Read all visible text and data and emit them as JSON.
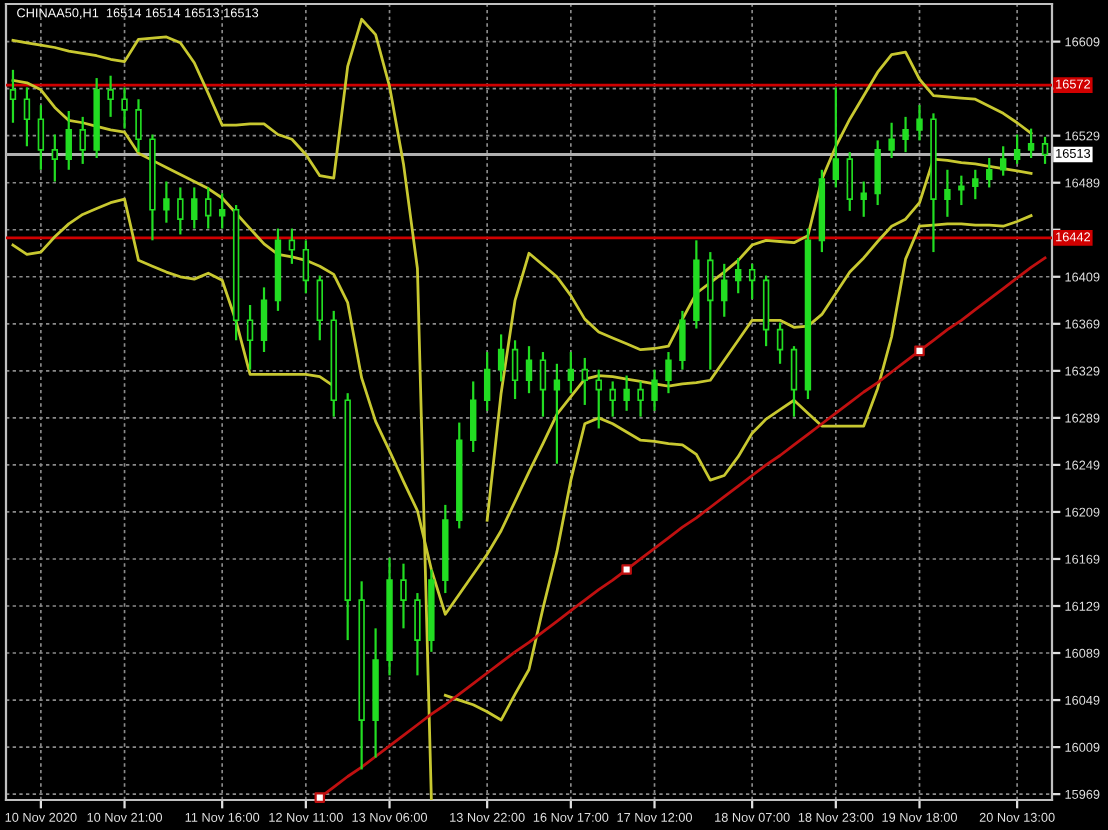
{
  "chart_data": {
    "type": "candlestick",
    "title": "CHINAA50,H1  16514 16514 16513 16513",
    "categories": [
      null,
      null,
      "10 Nov 2020",
      null,
      null,
      null,
      null,
      null,
      "10 Nov 21:00",
      null,
      null,
      null,
      null,
      null,
      null,
      "11 Nov 16:00",
      null,
      null,
      null,
      null,
      null,
      "12 Nov 11:00",
      null,
      null,
      null,
      null,
      null,
      "13 Nov 06:00",
      null,
      null,
      null,
      null,
      null,
      null,
      "13 Nov 22:00",
      null,
      null,
      null,
      null,
      null,
      "16 Nov 17:00",
      null,
      null,
      null,
      null,
      null,
      "17 Nov 12:00",
      null,
      null,
      null,
      null,
      null,
      null,
      "18 Nov 07:00",
      null,
      null,
      null,
      null,
      null,
      "18 Nov 23:00",
      null,
      null,
      null,
      null,
      null,
      "19 Nov 18:00",
      null,
      null,
      null,
      null,
      null,
      null,
      "20 Nov 13:00",
      null,
      null
    ],
    "ylim": [
      15964,
      16641
    ],
    "yticks": [
      16609,
      {
        "value": 16569,
        "label": null
      },
      16529,
      16489,
      {
        "value": 16449,
        "label": null
      },
      16409,
      16369,
      16329,
      16289,
      16249,
      16209,
      16169,
      16129,
      16089,
      16049,
      16009,
      15969
    ],
    "grid": true,
    "series": [
      {
        "color": "#22dd22",
        "ohlc": [
          [
            16568,
            16585,
            16540,
            16560
          ],
          [
            16560,
            16570,
            16520,
            16543
          ],
          [
            16543,
            16555,
            16500,
            16517
          ],
          [
            16517,
            16530,
            16490,
            16509
          ],
          [
            16509,
            16550,
            16500,
            16534
          ],
          [
            16534,
            16545,
            16505,
            16517
          ],
          [
            16517,
            16578,
            16510,
            16568
          ],
          [
            16568,
            16580,
            16545,
            16560
          ],
          [
            16560,
            16570,
            16535,
            16551
          ],
          [
            16551,
            16560,
            16515,
            16526
          ],
          [
            16526,
            16530,
            16440,
            16466
          ],
          [
            16466,
            16490,
            16455,
            16475
          ],
          [
            16475,
            16485,
            16445,
            16458
          ],
          [
            16458,
            16485,
            16450,
            16475
          ],
          [
            16475,
            16485,
            16450,
            16461
          ],
          [
            16461,
            16480,
            16450,
            16466
          ],
          [
            16466,
            16470,
            16355,
            16372
          ],
          [
            16372,
            16385,
            16330,
            16355
          ],
          [
            16355,
            16400,
            16345,
            16389
          ],
          [
            16389,
            16450,
            16380,
            16440
          ],
          [
            16440,
            16450,
            16420,
            16432
          ],
          [
            16432,
            16440,
            16395,
            16406
          ],
          [
            16406,
            16410,
            16355,
            16372
          ],
          [
            16372,
            16380,
            16290,
            16304
          ],
          [
            16304,
            16310,
            16100,
            16134
          ],
          [
            16134,
            16150,
            15990,
            16032
          ],
          [
            16032,
            16110,
            16000,
            16083
          ],
          [
            16083,
            16170,
            16070,
            16151
          ],
          [
            16151,
            16165,
            16110,
            16134
          ],
          [
            16134,
            16140,
            16070,
            16100
          ],
          [
            16100,
            16160,
            16090,
            16151
          ],
          [
            16151,
            16215,
            16140,
            16202
          ],
          [
            16202,
            16285,
            16195,
            16270
          ],
          [
            16270,
            16320,
            16260,
            16304
          ],
          [
            16304,
            16345,
            16295,
            16330
          ],
          [
            16330,
            16360,
            16320,
            16347
          ],
          [
            16347,
            16355,
            16305,
            16321
          ],
          [
            16321,
            16350,
            16310,
            16338
          ],
          [
            16338,
            16345,
            16290,
            16313
          ],
          [
            16313,
            16335,
            16250,
            16321
          ],
          [
            16321,
            16345,
            16310,
            16330
          ],
          [
            16330,
            16340,
            16300,
            16321
          ],
          [
            16321,
            16330,
            16280,
            16313
          ],
          [
            16313,
            16320,
            16290,
            16304
          ],
          [
            16304,
            16325,
            16295,
            16313
          ],
          [
            16313,
            16320,
            16290,
            16304
          ],
          [
            16304,
            16330,
            16295,
            16321
          ],
          [
            16321,
            16345,
            16310,
            16338
          ],
          [
            16338,
            16380,
            16330,
            16372
          ],
          [
            16372,
            16440,
            16365,
            16423
          ],
          [
            16423,
            16430,
            16330,
            16389
          ],
          [
            16389,
            16420,
            16375,
            16406
          ],
          [
            16406,
            16425,
            16395,
            16415
          ],
          [
            16415,
            16420,
            16390,
            16406
          ],
          [
            16406,
            16410,
            16350,
            16364
          ],
          [
            16364,
            16370,
            16335,
            16347
          ],
          [
            16347,
            16350,
            16290,
            16313
          ],
          [
            16313,
            16450,
            16305,
            16440
          ],
          [
            16440,
            16500,
            16430,
            16492
          ],
          [
            16492,
            16570,
            16485,
            16509
          ],
          [
            16509,
            16515,
            16465,
            16475
          ],
          [
            16475,
            16490,
            16460,
            16480
          ],
          [
            16480,
            16525,
            16470,
            16517
          ],
          [
            16517,
            16540,
            16510,
            16526
          ],
          [
            16526,
            16545,
            16515,
            16534
          ],
          [
            16534,
            16555,
            16525,
            16543
          ],
          [
            16543,
            16548,
            16430,
            16475
          ],
          [
            16475,
            16500,
            16460,
            16483
          ],
          [
            16483,
            16495,
            16470,
            16486
          ],
          [
            16486,
            16500,
            16475,
            16492
          ],
          [
            16492,
            16510,
            16485,
            16500
          ],
          [
            16500,
            16520,
            16495,
            16509
          ],
          [
            16509,
            16530,
            16505,
            16517
          ],
          [
            16517,
            16535,
            16510,
            16522
          ],
          [
            16522,
            16528,
            16505,
            16513
          ]
        ]
      },
      {
        "type": "line",
        "color": "#c8c830",
        "values": [
          16610,
          16608,
          16606,
          16604,
          16601,
          16599,
          16597,
          16594,
          16592,
          16611,
          16612,
          16613,
          16608,
          16591,
          16565,
          16538,
          16538,
          16539,
          16539,
          16530,
          16526,
          16513,
          16495,
          16493,
          16588,
          16628,
          16615,
          16571,
          16505,
          16416,
          15964,
          null,
          null,
          null,
          16202,
          16310,
          16389,
          16429,
          16419,
          16409,
          16393,
          16373,
          16362,
          16357,
          16352,
          16347,
          16348,
          16350,
          16373,
          16395,
          16404,
          16413,
          16423,
          16436,
          16440,
          16439,
          16438,
          16444,
          16492,
          16520,
          16543,
          16563,
          16583,
          16598,
          16600,
          16577,
          16563,
          16562,
          16561,
          16560,
          16554,
          16548,
          16540,
          16531,
          null
        ]
      },
      {
        "type": "line",
        "color": "#c8c830",
        "values": [
          16576,
          16574,
          16568,
          16553,
          16542,
          16540,
          16537,
          16534,
          16532,
          16514,
          16508,
          16502,
          16496,
          16490,
          16484,
          16476,
          16463,
          16450,
          16437,
          16428,
          16426,
          16423,
          16418,
          16411,
          16387,
          16323,
          16286,
          16261,
          16235,
          16210,
          16160,
          16122,
          16139,
          16156,
          16173,
          16193,
          16218,
          16243,
          16267,
          16292,
          16307,
          16322,
          16325,
          16324,
          16322,
          16320,
          16318,
          16316,
          16318,
          16319,
          16321,
          16338,
          16355,
          16372,
          16372,
          16372,
          16366,
          16367,
          16377,
          16395,
          16413,
          16425,
          16439,
          16452,
          16458,
          16472,
          16509,
          16508,
          16506,
          16505,
          16503,
          16501,
          16499,
          16497,
          null
        ]
      },
      {
        "type": "line",
        "color": "#c8c830",
        "values": [
          16436,
          16428,
          16430,
          16443,
          16454,
          16462,
          16467,
          16472,
          16475,
          16423,
          16418,
          16413,
          16409,
          16407,
          16412,
          16406,
          16371,
          16326,
          16326,
          16326,
          16326,
          16326,
          16324,
          16316,
          null,
          null,
          null,
          null,
          null,
          null,
          null,
          16053,
          16049,
          16045,
          16039,
          16032,
          16054,
          16075,
          16127,
          16175,
          16236,
          16284,
          16289,
          16284,
          16277,
          16270,
          16269,
          16267,
          16266,
          16258,
          16236,
          16240,
          16256,
          16276,
          16288,
          16296,
          16304,
          16293,
          16282,
          16282,
          16282,
          16282,
          16314,
          16358,
          16424,
          16452,
          16453,
          16454,
          16454,
          16453,
          16453,
          16452,
          16456,
          16461,
          null
        ]
      },
      {
        "type": "line",
        "color": "#c01010",
        "values": [
          null,
          null,
          null,
          null,
          null,
          null,
          null,
          null,
          null,
          null,
          null,
          null,
          null,
          null,
          null,
          null,
          null,
          null,
          null,
          null,
          null,
          null,
          15966,
          15975,
          15984,
          15992,
          16001,
          16010,
          16019,
          16028,
          16037,
          16045,
          16054,
          16063,
          16072,
          16081,
          16090,
          16098,
          16107,
          16116,
          16125,
          16134,
          16143,
          16151,
          16160,
          16169,
          16178,
          16187,
          16196,
          16204,
          16213,
          16222,
          16231,
          16240,
          16249,
          16257,
          16266,
          16275,
          16284,
          16293,
          16302,
          16311,
          16319,
          16328,
          16337,
          16346,
          16355,
          16364,
          16372,
          16381,
          16390,
          16399,
          16408,
          16417,
          16425
        ]
      },
      {
        "type": "scatter",
        "color": "#c01010",
        "marker": "square",
        "values": [
          null,
          null,
          null,
          null,
          null,
          null,
          null,
          null,
          null,
          null,
          null,
          null,
          null,
          null,
          null,
          null,
          null,
          null,
          null,
          null,
          null,
          null,
          15966,
          null,
          null,
          null,
          null,
          null,
          null,
          null,
          null,
          null,
          null,
          null,
          null,
          null,
          null,
          null,
          null,
          null,
          null,
          null,
          null,
          null,
          16160,
          null,
          null,
          null,
          null,
          null,
          null,
          null,
          null,
          null,
          null,
          null,
          null,
          null,
          null,
          null,
          null,
          null,
          null,
          null,
          null,
          16346,
          null,
          null,
          null,
          null,
          null,
          null,
          null,
          null,
          null
        ]
      }
    ],
    "ref_lines": [
      {
        "axis": "y",
        "value": 16572,
        "label": "16572",
        "color": "#d00000"
      },
      {
        "axis": "y",
        "value": 16442,
        "label": "16442",
        "color": "#d00000"
      },
      {
        "axis": "y",
        "value": 16513,
        "label": "16513",
        "color": "#b0b0b0"
      }
    ]
  }
}
